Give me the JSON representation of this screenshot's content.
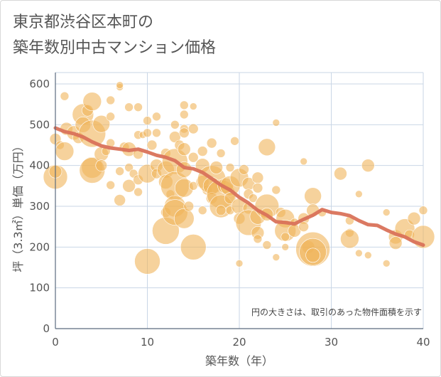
{
  "title": {
    "line1": "東京都渋谷区本町の",
    "line2": "築年数別中古マンション価格"
  },
  "chart_data": {
    "type": "scatter",
    "xlabel": "築年数（年）",
    "ylabel": "坪（3.3㎡）単価（万円）",
    "xlim": [
      0,
      40
    ],
    "ylim": [
      0,
      620
    ],
    "xticks": [
      0,
      10,
      20,
      30,
      40
    ],
    "yticks": [
      0,
      100,
      200,
      300,
      400,
      500,
      600
    ],
    "grid": true,
    "note": "円の大きさは、取引のあった物件面積を示す",
    "colors": {
      "bubble": "#f0b45a",
      "trend": "#d9725a",
      "grid": "#c9d6e6",
      "axis": "#5b6b7e"
    },
    "bubbles": [
      {
        "x": 0,
        "y": 372,
        "s": 17
      },
      {
        "x": 0,
        "y": 385,
        "s": 9
      },
      {
        "x": 0,
        "y": 465,
        "s": 8
      },
      {
        "x": 0.5,
        "y": 450,
        "s": 6
      },
      {
        "x": 1,
        "y": 435,
        "s": 13
      },
      {
        "x": 1,
        "y": 570,
        "s": 6
      },
      {
        "x": 1.2,
        "y": 490,
        "s": 9
      },
      {
        "x": 2,
        "y": 480,
        "s": 10
      },
      {
        "x": 2.5,
        "y": 468,
        "s": 8
      },
      {
        "x": 3,
        "y": 525,
        "s": 15
      },
      {
        "x": 3,
        "y": 500,
        "s": 11
      },
      {
        "x": 3.5,
        "y": 535,
        "s": 8
      },
      {
        "x": 4,
        "y": 557,
        "s": 13
      },
      {
        "x": 4,
        "y": 478,
        "s": 19
      },
      {
        "x": 4,
        "y": 395,
        "s": 15
      },
      {
        "x": 4,
        "y": 388,
        "s": 18
      },
      {
        "x": 5,
        "y": 502,
        "s": 12
      },
      {
        "x": 5,
        "y": 428,
        "s": 10
      },
      {
        "x": 5,
        "y": 400,
        "s": 8
      },
      {
        "x": 5.5,
        "y": 435,
        "s": 6
      },
      {
        "x": 6,
        "y": 560,
        "s": 6
      },
      {
        "x": 6,
        "y": 520,
        "s": 6
      },
      {
        "x": 6,
        "y": 455,
        "s": 6
      },
      {
        "x": 6,
        "y": 352,
        "s": 6
      },
      {
        "x": 7,
        "y": 592,
        "s": 5
      },
      {
        "x": 7,
        "y": 597,
        "s": 5
      },
      {
        "x": 7,
        "y": 386,
        "s": 6
      },
      {
        "x": 7,
        "y": 315,
        "s": 8
      },
      {
        "x": 7.5,
        "y": 445,
        "s": 7
      },
      {
        "x": 8,
        "y": 543,
        "s": 6
      },
      {
        "x": 8,
        "y": 440,
        "s": 10
      },
      {
        "x": 8,
        "y": 395,
        "s": 6
      },
      {
        "x": 8,
        "y": 350,
        "s": 9
      },
      {
        "x": 8.5,
        "y": 380,
        "s": 6
      },
      {
        "x": 9,
        "y": 543,
        "s": 6
      },
      {
        "x": 9,
        "y": 475,
        "s": 6
      },
      {
        "x": 9,
        "y": 428,
        "s": 7
      },
      {
        "x": 9,
        "y": 365,
        "s": 7
      },
      {
        "x": 9,
        "y": 335,
        "s": 6
      },
      {
        "x": 9.5,
        "y": 475,
        "s": 5
      },
      {
        "x": 10,
        "y": 510,
        "s": 6
      },
      {
        "x": 10,
        "y": 480,
        "s": 6
      },
      {
        "x": 10,
        "y": 380,
        "s": 13
      },
      {
        "x": 10,
        "y": 165,
        "s": 18
      },
      {
        "x": 10.5,
        "y": 450,
        "s": 7
      },
      {
        "x": 11,
        "y": 520,
        "s": 6
      },
      {
        "x": 11,
        "y": 480,
        "s": 6
      },
      {
        "x": 11,
        "y": 400,
        "s": 9
      },
      {
        "x": 11,
        "y": 380,
        "s": 7
      },
      {
        "x": 12,
        "y": 430,
        "s": 7
      },
      {
        "x": 12,
        "y": 390,
        "s": 12
      },
      {
        "x": 12,
        "y": 360,
        "s": 10
      },
      {
        "x": 12,
        "y": 285,
        "s": 7
      },
      {
        "x": 12,
        "y": 240,
        "s": 19
      },
      {
        "x": 12.5,
        "y": 330,
        "s": 6
      },
      {
        "x": 13,
        "y": 500,
        "s": 6
      },
      {
        "x": 13,
        "y": 470,
        "s": 8
      },
      {
        "x": 13,
        "y": 410,
        "s": 18
      },
      {
        "x": 13,
        "y": 350,
        "s": 20
      },
      {
        "x": 13,
        "y": 300,
        "s": 15
      },
      {
        "x": 13,
        "y": 285,
        "s": 18
      },
      {
        "x": 13.5,
        "y": 450,
        "s": 7
      },
      {
        "x": 14,
        "y": 548,
        "s": 6
      },
      {
        "x": 14,
        "y": 525,
        "s": 6
      },
      {
        "x": 14,
        "y": 490,
        "s": 6
      },
      {
        "x": 14,
        "y": 480,
        "s": 7
      },
      {
        "x": 14,
        "y": 440,
        "s": 9
      },
      {
        "x": 14,
        "y": 390,
        "s": 11
      },
      {
        "x": 14,
        "y": 345,
        "s": 13
      },
      {
        "x": 14,
        "y": 270,
        "s": 14
      },
      {
        "x": 14.5,
        "y": 300,
        "s": 7
      },
      {
        "x": 15,
        "y": 545,
        "s": 5
      },
      {
        "x": 15,
        "y": 490,
        "s": 7
      },
      {
        "x": 15,
        "y": 420,
        "s": 7
      },
      {
        "x": 15,
        "y": 350,
        "s": 6
      },
      {
        "x": 15,
        "y": 200,
        "s": 18
      },
      {
        "x": 16,
        "y": 435,
        "s": 7
      },
      {
        "x": 16,
        "y": 400,
        "s": 10
      },
      {
        "x": 16,
        "y": 360,
        "s": 9
      },
      {
        "x": 16,
        "y": 290,
        "s": 6
      },
      {
        "x": 16.5,
        "y": 340,
        "s": 7
      },
      {
        "x": 17,
        "y": 455,
        "s": 7
      },
      {
        "x": 17,
        "y": 365,
        "s": 20
      },
      {
        "x": 17,
        "y": 350,
        "s": 12
      },
      {
        "x": 17,
        "y": 320,
        "s": 8
      },
      {
        "x": 17.5,
        "y": 395,
        "s": 9
      },
      {
        "x": 18,
        "y": 430,
        "s": 6
      },
      {
        "x": 18,
        "y": 330,
        "s": 20
      },
      {
        "x": 18,
        "y": 300,
        "s": 16
      },
      {
        "x": 18,
        "y": 290,
        "s": 7
      },
      {
        "x": 18.5,
        "y": 350,
        "s": 11
      },
      {
        "x": 19,
        "y": 395,
        "s": 6
      },
      {
        "x": 19,
        "y": 350,
        "s": 14
      },
      {
        "x": 19,
        "y": 320,
        "s": 8
      },
      {
        "x": 19,
        "y": 290,
        "s": 6
      },
      {
        "x": 19.5,
        "y": 460,
        "s": 6
      },
      {
        "x": 20,
        "y": 370,
        "s": 13
      },
      {
        "x": 20,
        "y": 300,
        "s": 11
      },
      {
        "x": 20,
        "y": 270,
        "s": 8
      },
      {
        "x": 20,
        "y": 160,
        "s": 5
      },
      {
        "x": 20.5,
        "y": 390,
        "s": 7
      },
      {
        "x": 21,
        "y": 355,
        "s": 9
      },
      {
        "x": 21,
        "y": 330,
        "s": 7
      },
      {
        "x": 21,
        "y": 295,
        "s": 8
      },
      {
        "x": 21,
        "y": 260,
        "s": 18
      },
      {
        "x": 21.5,
        "y": 320,
        "s": 6
      },
      {
        "x": 22,
        "y": 370,
        "s": 8
      },
      {
        "x": 22,
        "y": 345,
        "s": 7
      },
      {
        "x": 22,
        "y": 275,
        "s": 11
      },
      {
        "x": 22,
        "y": 235,
        "s": 9
      },
      {
        "x": 22,
        "y": 220,
        "s": 6
      },
      {
        "x": 23,
        "y": 445,
        "s": 12
      },
      {
        "x": 23,
        "y": 300,
        "s": 17
      },
      {
        "x": 23,
        "y": 280,
        "s": 9
      },
      {
        "x": 23,
        "y": 205,
        "s": 6
      },
      {
        "x": 24,
        "y": 505,
        "s": 5
      },
      {
        "x": 24,
        "y": 340,
        "s": 6
      },
      {
        "x": 24,
        "y": 175,
        "s": 5
      },
      {
        "x": 24.5,
        "y": 285,
        "s": 7
      },
      {
        "x": 25,
        "y": 270,
        "s": 13
      },
      {
        "x": 25,
        "y": 240,
        "s": 15
      },
      {
        "x": 25,
        "y": 225,
        "s": 6
      },
      {
        "x": 25,
        "y": 200,
        "s": 5
      },
      {
        "x": 26,
        "y": 260,
        "s": 6
      },
      {
        "x": 26,
        "y": 240,
        "s": 9
      },
      {
        "x": 27,
        "y": 410,
        "s": 5
      },
      {
        "x": 27,
        "y": 270,
        "s": 8
      },
      {
        "x": 27,
        "y": 250,
        "s": 7
      },
      {
        "x": 27.5,
        "y": 200,
        "s": 9
      },
      {
        "x": 28,
        "y": 325,
        "s": 12
      },
      {
        "x": 28,
        "y": 290,
        "s": 9
      },
      {
        "x": 28,
        "y": 195,
        "s": 24
      },
      {
        "x": 28,
        "y": 188,
        "s": 19
      },
      {
        "x": 28,
        "y": 180,
        "s": 10
      },
      {
        "x": 29,
        "y": 285,
        "s": 6
      },
      {
        "x": 31,
        "y": 380,
        "s": 9
      },
      {
        "x": 32,
        "y": 235,
        "s": 6
      },
      {
        "x": 32,
        "y": 220,
        "s": 13
      },
      {
        "x": 32,
        "y": 265,
        "s": 6
      },
      {
        "x": 33,
        "y": 330,
        "s": 5
      },
      {
        "x": 33,
        "y": 185,
        "s": 5
      },
      {
        "x": 34,
        "y": 400,
        "s": 9
      },
      {
        "x": 34,
        "y": 180,
        "s": 5
      },
      {
        "x": 36,
        "y": 285,
        "s": 5
      },
      {
        "x": 36,
        "y": 160,
        "s": 5
      },
      {
        "x": 37,
        "y": 225,
        "s": 10
      },
      {
        "x": 37,
        "y": 210,
        "s": 9
      },
      {
        "x": 38,
        "y": 245,
        "s": 14
      },
      {
        "x": 38.5,
        "y": 230,
        "s": 7
      },
      {
        "x": 39,
        "y": 270,
        "s": 9
      },
      {
        "x": 40,
        "y": 290,
        "s": 6
      },
      {
        "x": 40,
        "y": 225,
        "s": 16
      }
    ],
    "trend": {
      "x": [
        0,
        1,
        2,
        3,
        4,
        5,
        6,
        7,
        8,
        9,
        10,
        11,
        12,
        13,
        14,
        15,
        16,
        17,
        18,
        19,
        20,
        21,
        22,
        23,
        24,
        25,
        26,
        27,
        28,
        29,
        30,
        31,
        32,
        33,
        34,
        35,
        36,
        37,
        38,
        39,
        40
      ],
      "y": [
        492,
        483,
        478,
        470,
        458,
        448,
        443,
        440,
        437,
        440,
        433,
        425,
        420,
        412,
        395,
        392,
        383,
        368,
        352,
        340,
        322,
        308,
        290,
        278,
        262,
        260,
        257,
        268,
        278,
        292,
        285,
        282,
        277,
        265,
        255,
        253,
        242,
        232,
        225,
        213,
        205
      ]
    }
  }
}
